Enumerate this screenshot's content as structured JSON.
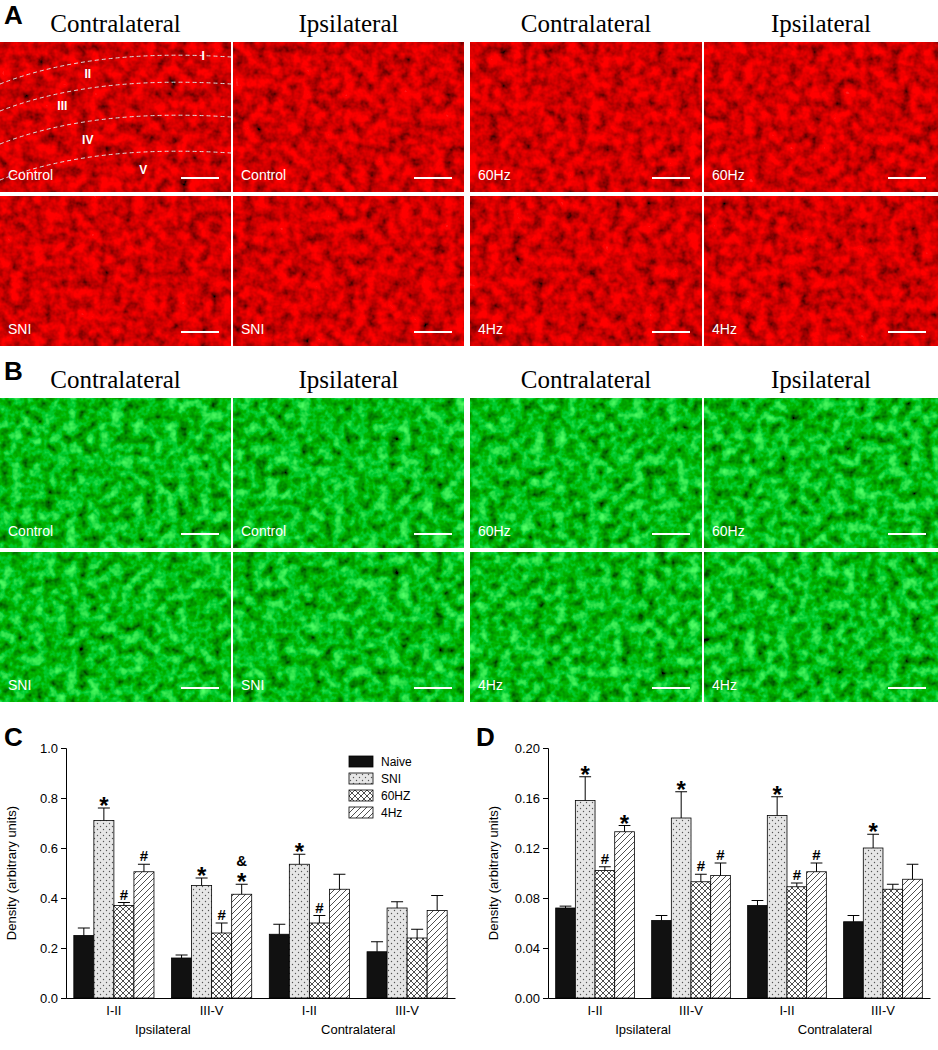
{
  "figure_panels": [
    {
      "letter": "A",
      "color": "#d81818",
      "headers": [
        "Contralateral",
        "Ipsilateral",
        "Contralateral",
        "Ipsilateral"
      ],
      "cells": [
        "Control",
        "Control",
        "60Hz",
        "60Hz",
        "SNI",
        "SNI",
        "4Hz",
        "4Hz"
      ],
      "lamina_labels": [
        "I",
        "II",
        "III",
        "IV",
        "V"
      ]
    },
    {
      "letter": "B",
      "color": "#22b02a",
      "headers": [
        "Contralateral",
        "Ipsilateral",
        "Contralateral",
        "Ipsilateral"
      ],
      "cells": [
        "Control",
        "Control",
        "60Hz",
        "60Hz",
        "SNI",
        "SNI",
        "4Hz",
        "4Hz"
      ]
    }
  ],
  "chart_data": [
    {
      "type": "bar",
      "panel_label": "C",
      "y_label": "Density (arbitrary units)",
      "categories": [
        "I-II",
        "III-V",
        "I-II",
        "III-V"
      ],
      "group_labels": [
        "Ipsilateral",
        "Contralateral"
      ],
      "ylim": [
        0,
        1
      ],
      "yticks": [
        {
          "value": 0,
          "label": "0.0"
        },
        0.2,
        0.4,
        0.6,
        0.8,
        {
          "value": 1,
          "label": "1.0"
        }
      ],
      "legend": "top-right",
      "series": [
        {
          "name": "Naive",
          "color": "#111111",
          "values": [
            0.25,
            0.16,
            0.255,
            0.185
          ],
          "errors": [
            0.03,
            0.012,
            0.04,
            0.04
          ],
          "significance": [
            null,
            null,
            null,
            null
          ]
        },
        {
          "name": "SNI",
          "color": "#e6e6e6",
          "values": [
            0.71,
            0.45,
            0.535,
            0.36
          ],
          "errors": [
            0.05,
            0.03,
            0.04,
            0.025
          ],
          "significance": [
            [
              "*"
            ],
            [
              "*"
            ],
            [
              "*"
            ],
            null
          ]
        },
        {
          "name": "60HZ",
          "color": "#ffffff",
          "values": [
            0.37,
            0.26,
            0.3,
            0.24
          ],
          "errors": [
            0.012,
            0.04,
            0.03,
            0.035
          ],
          "significance": [
            [
              "#"
            ],
            [
              "#"
            ],
            [
              "#"
            ],
            null
          ]
        },
        {
          "name": "4Hz",
          "color": "#ffffff",
          "values": [
            0.505,
            0.415,
            0.435,
            0.35
          ],
          "errors": [
            0.03,
            0.04,
            0.06,
            0.06
          ],
          "significance": [
            [
              "#"
            ],
            [
              "&",
              "*"
            ],
            null,
            null
          ]
        }
      ]
    },
    {
      "type": "bar",
      "panel_label": "D",
      "y_label": "Density (arbitrary units)",
      "categories": [
        "I-II",
        "III-V",
        "I-II",
        "III-V"
      ],
      "group_labels": [
        "Ipsilateral",
        "Contralateral"
      ],
      "ylim": [
        0,
        0.2
      ],
      "yticks": [
        {
          "value": 0,
          "label": "0.00"
        },
        {
          "value": 0.04,
          "label": "0.04"
        },
        {
          "value": 0.08,
          "label": "0.08"
        },
        {
          "value": 0.12,
          "label": "0.12"
        },
        {
          "value": 0.16,
          "label": "0.16"
        },
        {
          "value": 0.2,
          "label": "0.20"
        }
      ],
      "series": [
        {
          "color": "#111111",
          "values": [
            0.072,
            0.062,
            0.074,
            0.061
          ],
          "errors": [
            0.0015,
            0.004,
            0.004,
            0.005
          ],
          "significance": [
            null,
            null,
            null,
            null
          ]
        },
        {
          "color": "#e6e6e6",
          "values": [
            0.158,
            0.144,
            0.146,
            0.12
          ],
          "errors": [
            0.019,
            0.021,
            0.015,
            0.011
          ],
          "significance": [
            [
              "*"
            ],
            [
              "*"
            ],
            [
              "*"
            ],
            [
              "*"
            ]
          ]
        },
        {
          "color": "#ffffff",
          "values": [
            0.102,
            0.093,
            0.089,
            0.087
          ],
          "errors": [
            0.003,
            0.006,
            0.003,
            0.004
          ],
          "significance": [
            [
              "#"
            ],
            [
              "#"
            ],
            [
              "#"
            ],
            null
          ]
        },
        {
          "color": "#ffffff",
          "values": [
            0.133,
            0.098,
            0.101,
            0.095
          ],
          "errors": [
            0.005,
            0.01,
            0.007,
            0.012
          ],
          "significance": [
            [
              "*"
            ],
            [
              "#"
            ],
            [
              "#"
            ],
            null
          ]
        }
      ]
    }
  ]
}
